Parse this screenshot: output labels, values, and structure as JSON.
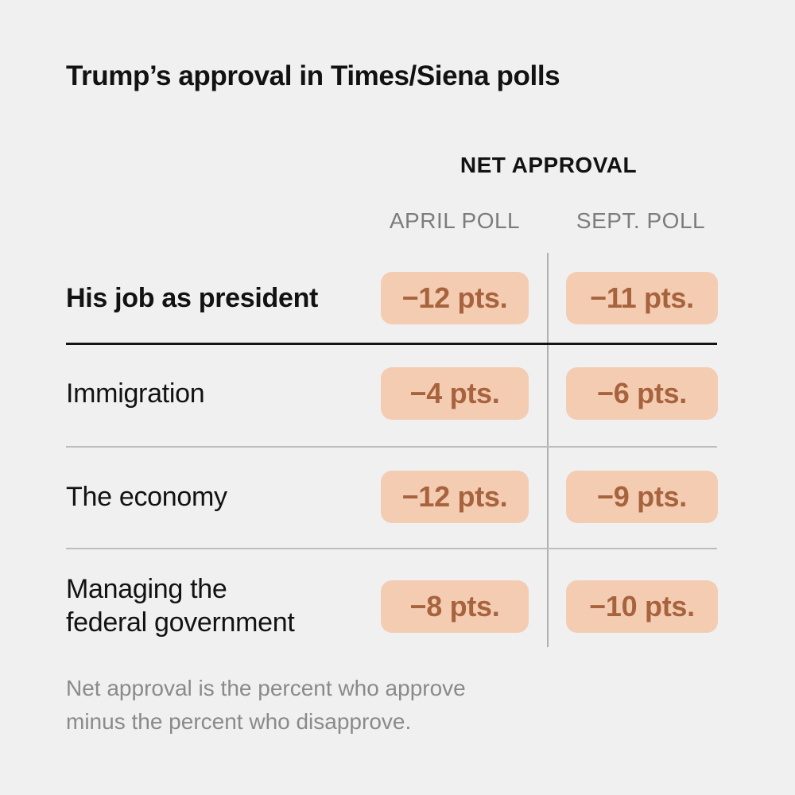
{
  "page": {
    "title": "Trump’s approval in Times/Siena polls",
    "background_color": "#f0f0f0"
  },
  "table": {
    "group_header": "NET APPROVAL",
    "columns": [
      {
        "label": "APRIL POLL"
      },
      {
        "label": "SEPT. POLL"
      }
    ],
    "rows": [
      {
        "label_lines": [
          "His job as president"
        ],
        "emphasis": true,
        "april_value": "−12 pts.",
        "sept_value": "−11 pts."
      },
      {
        "label_lines": [
          "Immigration"
        ],
        "emphasis": false,
        "april_value": "−4 pts.",
        "sept_value": "−6 pts."
      },
      {
        "label_lines": [
          "The economy"
        ],
        "emphasis": false,
        "april_value": "−12 pts.",
        "sept_value": "−9 pts."
      },
      {
        "label_lines": [
          "Managing the",
          "federal government"
        ],
        "emphasis": false,
        "april_value": "−8 pts.",
        "sept_value": "−10 pts."
      }
    ]
  },
  "footnote": {
    "lines": [
      "Net approval is the percent who approve",
      "minus the percent who disapprove."
    ]
  },
  "colors": {
    "background": "#f0f0f0",
    "text_dark": "#121212",
    "header_gray": "#7c7c7c",
    "footnote_gray": "#8a8a8a",
    "pill_background": "#f4ccb2",
    "pill_text": "#a7633d",
    "rule_dark": "#141414",
    "rule_light": "#bdbdbd",
    "column_divider": "#b0b0b0"
  },
  "chart_data": {
    "type": "table",
    "title": "Trump’s approval in Times/Siena polls",
    "group_header": "NET APPROVAL",
    "categories": [
      "His job as president",
      "Immigration",
      "The economy",
      "Managing the federal government"
    ],
    "series": [
      {
        "name": "APRIL POLL",
        "values": [
          -12,
          -4,
          -12,
          -8
        ]
      },
      {
        "name": "SEPT. POLL",
        "values": [
          -11,
          -6,
          -9,
          -10
        ]
      }
    ],
    "value_unit": "pts.",
    "note": "Net approval is the percent who approve minus the percent who disapprove."
  }
}
